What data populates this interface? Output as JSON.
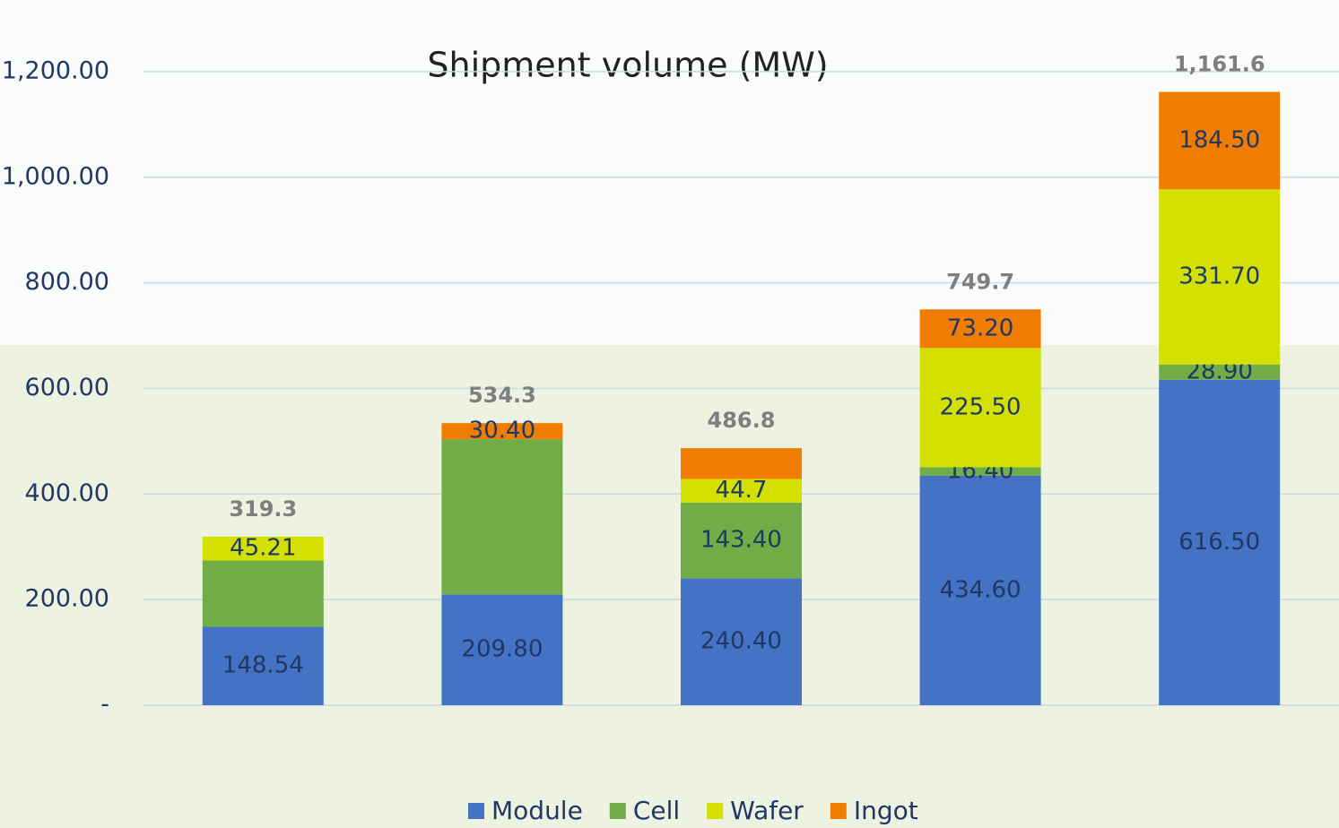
{
  "chart_data": {
    "type": "stacked-bar",
    "title": "Shipment volume (MW)",
    "categories": [
      null,
      null,
      null,
      null,
      null
    ],
    "series": [
      {
        "name": "Module",
        "color": "#4472c4",
        "values": [
          148.54,
          209.8,
          240.4,
          434.6,
          616.5
        ],
        "value_labels": [
          "148.54",
          "209.80",
          "240.40",
          "434.60",
          "616.50"
        ]
      },
      {
        "name": "Cell",
        "color": "#70ad47",
        "values": [
          125.55,
          294.1,
          143.4,
          16.4,
          28.9
        ],
        "value_labels": [
          null,
          null,
          "143.40",
          "16.40",
          "28.90"
        ]
      },
      {
        "name": "Wafer",
        "color": "#d4e000",
        "values": [
          45.21,
          0,
          44.7,
          225.5,
          331.7
        ],
        "value_labels": [
          "45.21",
          null,
          "44.7",
          "225.50",
          "331.70"
        ]
      },
      {
        "name": "Ingot",
        "color": "#f07d00",
        "values": [
          0,
          30.4,
          58.3,
          73.2,
          184.5
        ],
        "value_labels": [
          null,
          "30.40",
          null,
          "73.20",
          "184.50"
        ]
      }
    ],
    "totals": {
      "values": [
        319.3,
        534.3,
        486.8,
        749.7,
        1161.6
      ],
      "value_labels": [
        "319.3",
        "534.3",
        "486.8",
        "749.7",
        "1,161.6"
      ]
    },
    "ylim": [
      0,
      1300
    ],
    "yticks": [
      {
        "value": 0,
        "label": "-"
      },
      {
        "value": 200,
        "label": "200.00"
      },
      {
        "value": 400,
        "label": "400.00"
      },
      {
        "value": 600,
        "label": "600.00"
      },
      {
        "value": 800,
        "label": "800.00"
      },
      {
        "value": 1000,
        "label": "1,000.00"
      },
      {
        "value": 1200,
        "label": "1,200.00"
      }
    ],
    "grid": true,
    "legend": "bottom"
  }
}
